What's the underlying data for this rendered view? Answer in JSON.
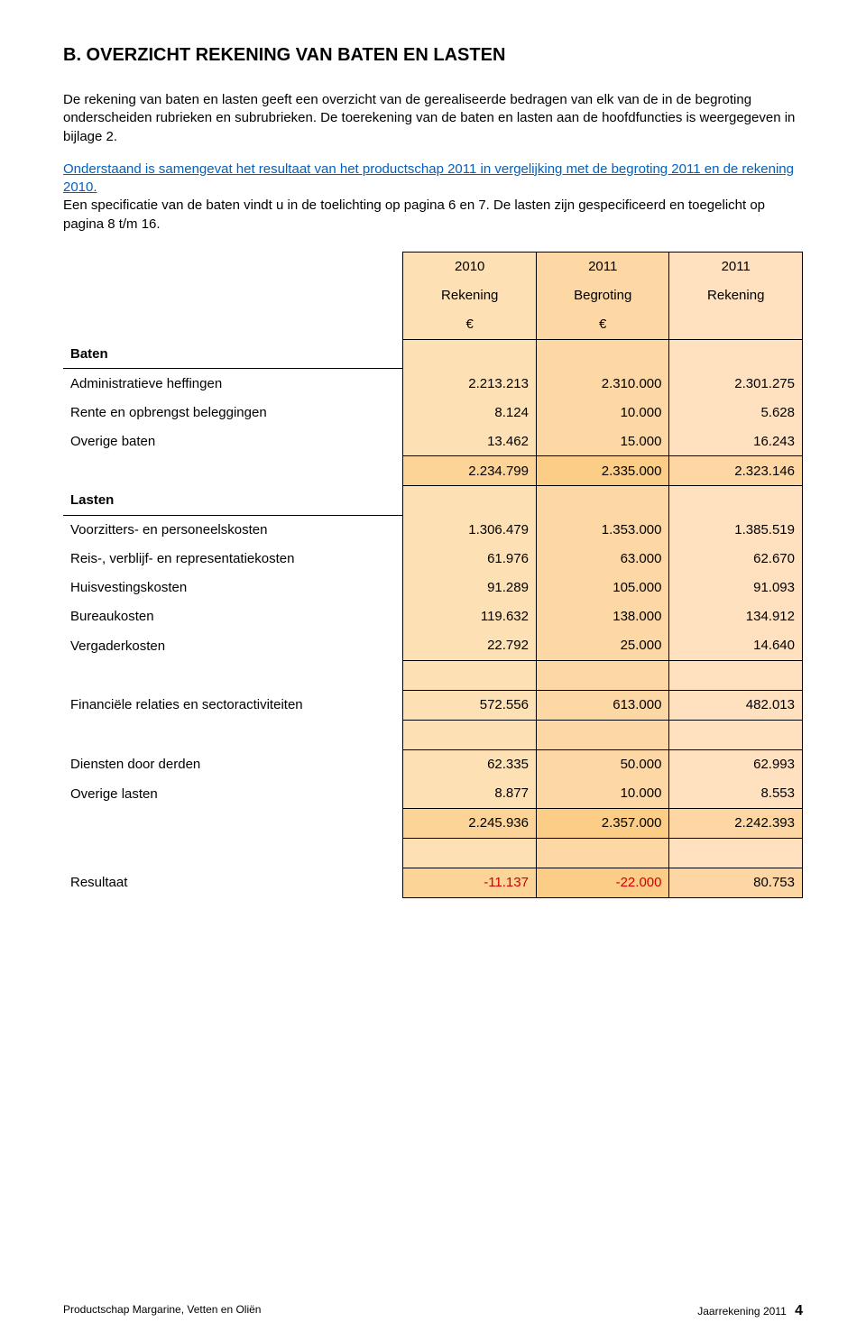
{
  "title": "B. OVERZICHT REKENING VAN BATEN EN LASTEN",
  "para1": "De rekening van baten en lasten geeft een overzicht van de gerealiseerde bedragen van elk van de in de begroting onderscheiden rubrieken en subrubrieken. De toerekening van de baten en lasten aan de hoofdfuncties is weergegeven in bijlage 2.",
  "para2a": "Onderstaand is samengevat het resultaat van het productschap 2011 in vergelijking met de begroting 2011 en de rekening 2010.",
  "para2b": "Een specificatie van de baten vindt u in de toelichting op pagina 6 en 7. De lasten zijn gespecificeerd en toegelicht op pagina 8 t/m 16.",
  "colors": {
    "col2010": "#fde1b4",
    "col2011a": "#fdd8a5",
    "col2011b": "#ffe1c0",
    "colTotal2010": "#fcd497",
    "colTotal2011a": "#fbcd86",
    "colTotal2011b": "#fdd6a4",
    "link": "#0061c1",
    "neg": "#d10000"
  },
  "years": {
    "c1": "2010",
    "c2": "2011",
    "c3": "2011"
  },
  "subhdr": {
    "c1": "Rekening",
    "c2": "Begroting",
    "c3": "Rekening"
  },
  "cur": {
    "c1": "€",
    "c2": "€",
    "c3": ""
  },
  "sections": {
    "baten": "Baten",
    "lasten": "Lasten",
    "resultaat": "Resultaat"
  },
  "rows": {
    "admin": {
      "label": "Administratieve heffingen",
      "v": [
        "2.213.213",
        "2.310.000",
        "2.301.275"
      ]
    },
    "rente": {
      "label": "Rente en opbrengst  beleggingen",
      "v": [
        "8.124",
        "10.000",
        "5.628"
      ]
    },
    "overigeB": {
      "label": "Overige baten",
      "v": [
        "13.462",
        "15.000",
        "16.243"
      ]
    },
    "batenTot": {
      "label": "",
      "v": [
        "2.234.799",
        "2.335.000",
        "2.323.146"
      ]
    },
    "voorz": {
      "label": "Voorzitters- en personeelskosten",
      "v": [
        "1.306.479",
        "1.353.000",
        "1.385.519"
      ]
    },
    "reis": {
      "label": "Reis-, verblijf- en representatiekosten",
      "v": [
        "61.976",
        "63.000",
        "62.670"
      ]
    },
    "huis": {
      "label": "Huisvestingskosten",
      "v": [
        "91.289",
        "105.000",
        "91.093"
      ]
    },
    "bureau": {
      "label": "Bureaukosten",
      "v": [
        "119.632",
        "138.000",
        "134.912"
      ]
    },
    "vergad": {
      "label": "Vergaderkosten",
      "v": [
        "22.792",
        "25.000",
        "14.640"
      ]
    },
    "fin": {
      "label": "Financiële relaties en sectoractiviteiten",
      "v": [
        "572.556",
        "613.000",
        "482.013"
      ]
    },
    "dienst": {
      "label": "Diensten door derden",
      "v": [
        "62.335",
        "50.000",
        "62.993"
      ]
    },
    "overigeL": {
      "label": "Overige lasten",
      "v": [
        "8.877",
        "10.000",
        "8.553"
      ]
    },
    "lastenTot": {
      "label": "",
      "v": [
        "2.245.936",
        "2.357.000",
        "2.242.393"
      ]
    },
    "resultaat": {
      "label": "",
      "v": [
        "-11.137",
        "-22.000",
        "80.753"
      ]
    }
  },
  "footer": {
    "left": "Productschap Margarine, Vetten en Oliën",
    "right": "Jaarrekening 2011",
    "page": "4"
  }
}
